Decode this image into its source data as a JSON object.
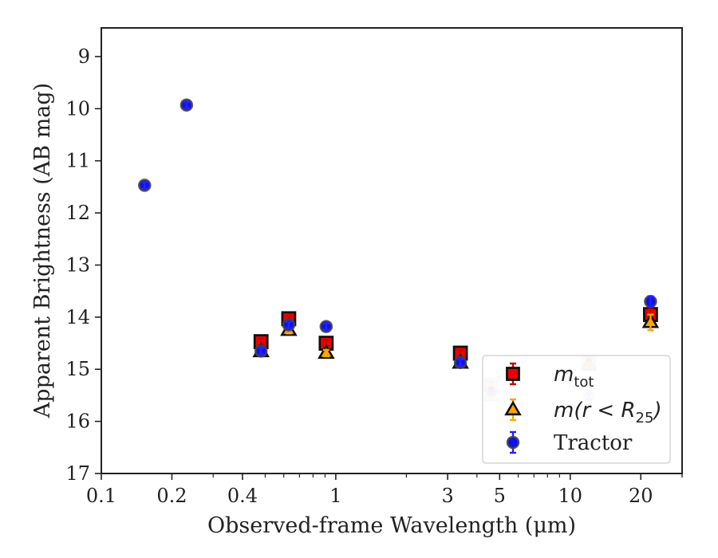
{
  "chart_data": {
    "type": "scatter",
    "xscale": "log",
    "yaxis_inverted": true,
    "xlabel": "Observed-frame Wavelength (μm)",
    "ylabel": "Apparent Brightness (AB mag)",
    "xlim": [
      0.1,
      30
    ],
    "ylim": [
      17,
      8.45
    ],
    "xticks": [
      {
        "value": 0.1,
        "label": "0.1"
      },
      {
        "value": 0.2,
        "label": "0.2"
      },
      {
        "value": 0.4,
        "label": "0.4"
      },
      {
        "value": 1,
        "label": "1"
      },
      {
        "value": 3,
        "label": "3"
      },
      {
        "value": 5,
        "label": "5"
      },
      {
        "value": 10,
        "label": "10"
      },
      {
        "value": 20,
        "label": "20"
      }
    ],
    "yticks": [
      {
        "value": 9,
        "label": "9"
      },
      {
        "value": 10,
        "label": "10"
      },
      {
        "value": 11,
        "label": "11"
      },
      {
        "value": 12,
        "label": "12"
      },
      {
        "value": 13,
        "label": "13"
      },
      {
        "value": 14,
        "label": "14"
      },
      {
        "value": 15,
        "label": "15"
      },
      {
        "value": 16,
        "label": "16"
      },
      {
        "value": 17,
        "label": "17"
      }
    ],
    "legend_position": "lower-right",
    "series": [
      {
        "name": "m_tot",
        "label_main": "m",
        "label_sub": "tot",
        "marker": "square",
        "fill": "#ee0000",
        "errcolor": "#cc0000",
        "points": [
          {
            "x": 0.48,
            "y": 14.47,
            "err": 0.05
          },
          {
            "x": 0.63,
            "y": 14.03,
            "err": 0.05
          },
          {
            "x": 0.91,
            "y": 14.5,
            "err": 0.05
          },
          {
            "x": 3.4,
            "y": 14.69,
            "err": 0.05
          },
          {
            "x": 4.6,
            "y": 15.3,
            "err": 0.05,
            "faded": true
          },
          {
            "x": 12,
            "y": 14.88,
            "err": 0.05,
            "faded": true
          },
          {
            "x": 22,
            "y": 13.95,
            "err": 0.1
          }
        ]
      },
      {
        "name": "m(r < R_25)",
        "label_main": "m(r < R",
        "label_sub": "25",
        "label_tail": ")",
        "marker": "triangle",
        "fill": "#ffa500",
        "errcolor": "#ffa500",
        "points": [
          {
            "x": 0.48,
            "y": 14.66,
            "err": 0.05
          },
          {
            "x": 0.63,
            "y": 14.25,
            "err": 0.05
          },
          {
            "x": 0.91,
            "y": 14.69,
            "err": 0.05
          },
          {
            "x": 3.4,
            "y": 14.88,
            "err": 0.05
          },
          {
            "x": 4.6,
            "y": 15.5,
            "err": 0.05,
            "faded": true
          },
          {
            "x": 12,
            "y": 14.92,
            "err": 0.05,
            "faded": true
          },
          {
            "x": 22,
            "y": 14.1,
            "err": 0.15
          }
        ]
      },
      {
        "name": "Tractor",
        "label_main": "Tractor",
        "marker": "circle",
        "fill": "#1010ee",
        "errcolor": "#2222ff",
        "points": [
          {
            "x": 0.153,
            "y": 11.47,
            "err": 0.05
          },
          {
            "x": 0.231,
            "y": 9.93,
            "err": 0.05
          },
          {
            "x": 0.48,
            "y": 14.65,
            "err": 0.05
          },
          {
            "x": 0.63,
            "y": 14.15,
            "err": 0.05
          },
          {
            "x": 0.91,
            "y": 14.18,
            "err": 0.05
          },
          {
            "x": 3.4,
            "y": 14.87,
            "err": 0.05
          },
          {
            "x": 4.6,
            "y": 15.43,
            "err": 0.05,
            "faded": true
          },
          {
            "x": 12,
            "y": 15.52,
            "err": 0.05,
            "faded": true
          },
          {
            "x": 22,
            "y": 13.7,
            "err": 0.1
          }
        ]
      }
    ]
  }
}
